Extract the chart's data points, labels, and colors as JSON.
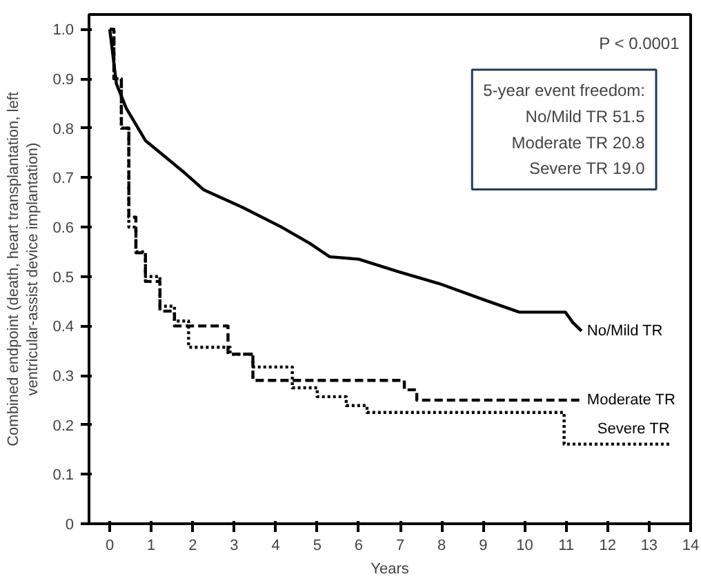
{
  "chart_data": {
    "type": "step",
    "xlabel": "Years",
    "ylabel": "Combined endpoint (death, heart transplantation, left ventricular-assist device implantation)",
    "xlim": [
      -0.5,
      14
    ],
    "xticks": [
      0,
      1,
      2,
      3,
      4,
      5,
      6,
      7,
      8,
      9,
      10,
      11,
      12,
      13,
      14
    ],
    "ylim": [
      0,
      1.03
    ],
    "yticks": [
      0,
      0.1,
      0.2,
      0.3,
      0.4,
      0.5,
      0.6,
      0.7,
      0.8,
      0.9,
      {
        "value": 1,
        "label": "1.0"
      }
    ],
    "grid": false,
    "legend": false,
    "marker": "none",
    "annotations": [
      "P < 0.0001",
      "5-year event freedom:",
      "No/Mild TR 51.5",
      "Moderate TR 20.8",
      "Severe TR 19.0"
    ],
    "series": [
      {
        "name": "No/Mild TR",
        "type": "line",
        "line_style": "solid",
        "color": "#000000",
        "x": [
          0,
          0.16,
          0.4,
          0.86,
          1.8,
          2.27,
          3.2,
          4.14,
          4.84,
          5.3,
          6.0,
          6.95,
          8.0,
          9.05,
          9.87,
          10.98,
          11.16,
          11.37
        ],
        "values": [
          1.0,
          0.89,
          0.84,
          0.775,
          0.71,
          0.675,
          0.64,
          0.6,
          0.566,
          0.54,
          0.535,
          0.51,
          0.484,
          0.452,
          0.428,
          0.428,
          0.407,
          0.39
        ]
      },
      {
        "name": "Moderate TR",
        "line_style": "dashed",
        "color": "#000000",
        "x": [
          0,
          0.1,
          0.28,
          0.46,
          0.63,
          0.86,
          1.21,
          1.56,
          2.85,
          3.45,
          7.1,
          7.4,
          11.37
        ],
        "values": [
          1.0,
          0.9,
          0.8,
          0.62,
          0.548,
          0.49,
          0.43,
          0.4,
          0.343,
          0.29,
          0.271,
          0.25,
          0.25
        ]
      },
      {
        "name": "Severe TR",
        "line_style": "dotted",
        "color": "#000000",
        "x": [
          0,
          0.1,
          0.28,
          0.46,
          0.63,
          0.86,
          1.21,
          1.56,
          1.9,
          2.9,
          3.45,
          4.4,
          5.0,
          5.7,
          6.2,
          10.95,
          13.5
        ],
        "values": [
          1.0,
          0.9,
          0.8,
          0.6,
          0.55,
          0.5,
          0.44,
          0.41,
          0.357,
          0.343,
          0.317,
          0.275,
          0.257,
          0.239,
          0.225,
          0.161,
          0.161
        ]
      }
    ]
  }
}
